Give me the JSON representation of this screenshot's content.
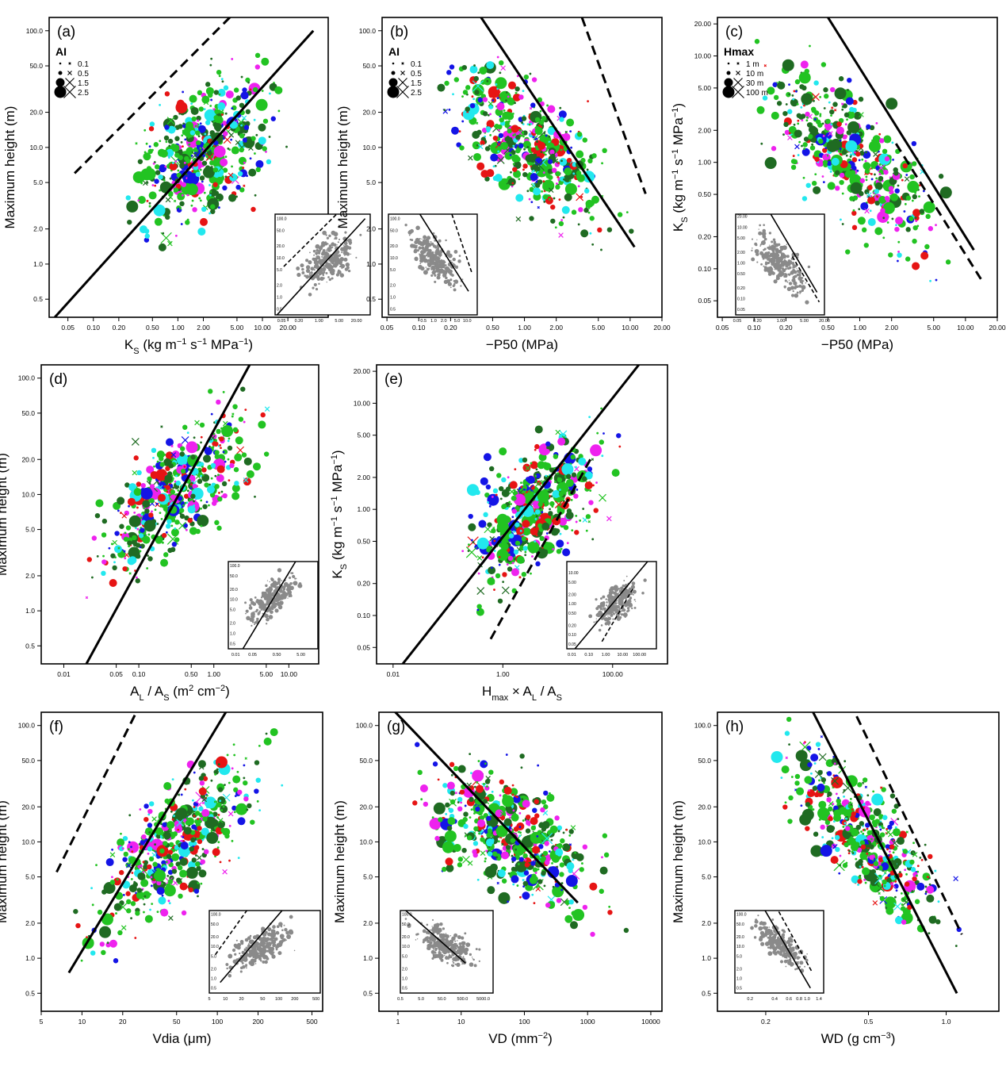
{
  "colors": {
    "dark_green": "#1f6b22",
    "green": "#22c322",
    "blue": "#1414e6",
    "cyan": "#22e8ee",
    "magenta": "#ee22ee",
    "red": "#e61414",
    "dark_red": "#8b1a1a",
    "inset_gray": "#8a8a8a"
  },
  "chart_data": [
    {
      "panel": "(a)",
      "type": "scatter",
      "xlabel": "K_S (kg m^-1 s^-1 MPa^-1)",
      "ylabel": "Maximum height (m)",
      "xscale": "log",
      "yscale": "log",
      "xlim": [
        0.03,
        60
      ],
      "ylim": [
        0.35,
        130
      ],
      "xticks": [
        "0.05",
        "0.10",
        "0.20",
        "0.50",
        "1.00",
        "2.00",
        "5.00",
        "10.00",
        "20.00"
      ],
      "yticks": [
        "0.5",
        "1.0",
        "2.0",
        "5.0",
        "10.0",
        "20.0",
        "50.0",
        "100.0"
      ],
      "legend": {
        "title": "AI",
        "entries": [
          "0.1",
          "0.5",
          "1.5",
          "2.5"
        ],
        "position": "top-left"
      },
      "point_cloud": {
        "x_range": [
          0.1,
          40
        ],
        "y_range": [
          0.6,
          130
        ]
      },
      "fit_lines": [
        {
          "style": "solid",
          "x": [
            0.035,
            40
          ],
          "y": [
            0.35,
            100
          ]
        },
        {
          "style": "dashed",
          "x": [
            0.06,
            5
          ],
          "y": [
            6,
            150
          ]
        }
      ],
      "inset": {
        "xticks": [
          "0.05",
          "0.20",
          "1.00",
          "5.00",
          "20.00"
        ],
        "yticks": [
          "0.5",
          "1.0",
          "2.0",
          "5.0",
          "10.0",
          "20.0",
          "50.0",
          "100.0"
        ]
      }
    },
    {
      "panel": "(b)",
      "type": "scatter",
      "xlabel": "−P50 (MPa)",
      "ylabel": "Maximum height (m)",
      "xscale": "log",
      "yscale": "log",
      "xlim": [
        0.045,
        20
      ],
      "ylim": [
        0.35,
        130
      ],
      "xticks": [
        "0.05",
        "0.10",
        "0.20",
        "0.50",
        "1.00",
        "2.00",
        "5.00",
        "10.00",
        "20.00"
      ],
      "yticks": [
        "0.5",
        "1.0",
        "2.0",
        "5.0",
        "10.0",
        "20.0",
        "50.0",
        "100.0"
      ],
      "legend": {
        "title": "AI",
        "entries": [
          "0.1",
          "0.5",
          "1.5",
          "2.5"
        ],
        "position": "top-left"
      },
      "point_cloud": {
        "x_range": [
          0.08,
          15
        ],
        "y_range": [
          0.8,
          130
        ]
      },
      "fit_lines": [
        {
          "style": "solid",
          "x": [
            0.35,
            11
          ],
          "y": [
            150,
            1.4
          ]
        },
        {
          "style": "dashed",
          "x": [
            3.5,
            14
          ],
          "y": [
            130,
            4
          ]
        }
      ],
      "inset": {
        "xticks": [
          "0.5",
          "1.0",
          "2.0",
          "5.0",
          "10.0"
        ],
        "yticks": [
          "0.5",
          "1.0",
          "2.0",
          "5.0",
          "10.0",
          "20.0",
          "50.0",
          "100.0"
        ]
      }
    },
    {
      "panel": "(c)",
      "type": "scatter",
      "xlabel": "−P50 (MPa)",
      "ylabel": "K_S (kg m^-1 s^-1 MPa^-1)",
      "xscale": "log",
      "yscale": "log",
      "xlim": [
        0.045,
        20
      ],
      "ylim": [
        0.035,
        23
      ],
      "xticks": [
        "0.05",
        "0.10",
        "0.20",
        "0.50",
        "1.00",
        "2.00",
        "5.00",
        "10.00",
        "20.00"
      ],
      "yticks": [
        "0.05",
        "0.10",
        "0.20",
        "0.50",
        "1.00",
        "2.00",
        "5.00",
        "10.00",
        "20.00"
      ],
      "legend": {
        "title": "Hmax",
        "entries": [
          "1 m",
          "10 m",
          "30 m",
          "100 m"
        ],
        "position": "top-left"
      },
      "point_cloud": {
        "x_range": [
          0.06,
          13
        ],
        "y_range": [
          0.06,
          18
        ]
      },
      "fit_lines": [
        {
          "style": "solid",
          "x": [
            0.5,
            12
          ],
          "y": [
            23,
            0.15
          ]
        },
        {
          "style": "dashed",
          "x": [
            2.2,
            14
          ],
          "y": [
            1.5,
            0.08
          ]
        }
      ],
      "inset": {
        "xticks": [
          "0.05",
          "0.20",
          "1.00",
          "5.00",
          "20.00"
        ],
        "yticks": [
          "0.05",
          "0.10",
          "0.20",
          "0.50",
          "1.00",
          "2.00",
          "5.00",
          "10.00",
          "20.00"
        ]
      }
    },
    {
      "panel": "(d)",
      "type": "scatter",
      "xlabel": "A_L / A_S (m^2 cm^-2)",
      "ylabel": "Maximum height (m)",
      "xscale": "log",
      "yscale": "log",
      "xlim": [
        0.005,
        25
      ],
      "ylim": [
        0.35,
        130
      ],
      "xticks": [
        "0.01",
        "0.05",
        "0.10",
        "0.50",
        "1.00",
        "5.00",
        "10.00"
      ],
      "yticks": [
        "0.5",
        "1.0",
        "2.0",
        "5.0",
        "10.0",
        "20.0",
        "50.0",
        "100.0"
      ],
      "point_cloud": {
        "x_range": [
          0.008,
          12
        ],
        "y_range": [
          1,
          120
        ]
      },
      "fit_lines": [
        {
          "style": "solid",
          "x": [
            0.02,
            3
          ],
          "y": [
            0.35,
            130
          ]
        }
      ],
      "inset": {
        "xticks": [
          "0.01",
          "0.05",
          "0.50",
          "5.00"
        ],
        "yticks": [
          "0.5",
          "1.0",
          "2.0",
          "5.0",
          "10.0",
          "20.0",
          "50.0",
          "100.0"
        ]
      }
    },
    {
      "panel": "(e)",
      "type": "scatter",
      "xlabel": "H_max × A_L / A_S",
      "ylabel": "K_S (kg m^-1 s^-1 MPa^-1)",
      "xscale": "log",
      "yscale": "log",
      "xlim": [
        0.005,
        1000
      ],
      "ylim": [
        0.035,
        23
      ],
      "xticks": [
        "0.01",
        "1.00",
        "100.00"
      ],
      "yticks": [
        "0.05",
        "0.10",
        "0.20",
        "0.50",
        "1.00",
        "2.00",
        "5.00",
        "10.00",
        "20.00"
      ],
      "point_cloud": {
        "x_range": [
          0.05,
          300
        ],
        "y_range": [
          0.07,
          15
        ]
      },
      "fit_lines": [
        {
          "style": "solid",
          "x": [
            0.015,
            300
          ],
          "y": [
            0.035,
            23
          ]
        },
        {
          "style": "dashed",
          "x": [
            0.6,
            40
          ],
          "y": [
            0.06,
            3
          ]
        }
      ],
      "inset": {
        "xticks": [
          "0.01",
          "0.10",
          "1.00",
          "10.00",
          "100.00"
        ],
        "yticks": [
          "0.05",
          "0.10",
          "0.20",
          "0.50",
          "1.00",
          "2.00",
          "5.00",
          "10.00"
        ]
      }
    },
    {
      "panel": "(f)",
      "type": "scatter",
      "xlabel": "Vdia (μm)",
      "ylabel": "Maximum height (m)",
      "xscale": "log",
      "yscale": "log",
      "xlim": [
        5,
        600
      ],
      "ylim": [
        0.35,
        130
      ],
      "xticks": [
        "5",
        "10",
        "20",
        "50",
        "100",
        "200",
        "500"
      ],
      "yticks": [
        "0.5",
        "1.0",
        "2.0",
        "5.0",
        "10.0",
        "20.0",
        "50.0",
        "100.0"
      ],
      "point_cloud": {
        "x_range": [
          6,
          400
        ],
        "y_range": [
          0.8,
          120
        ]
      },
      "fit_lines": [
        {
          "style": "solid",
          "x": [
            8,
            120
          ],
          "y": [
            0.75,
            140
          ]
        },
        {
          "style": "dashed",
          "x": [
            6.5,
            26
          ],
          "y": [
            5.5,
            140
          ]
        }
      ],
      "inset": {
        "xticks": [
          "5",
          "10",
          "20",
          "50",
          "100",
          "200",
          "500"
        ],
        "yticks": [
          "0.5",
          "1.0",
          "2.0",
          "5.0",
          "10.0",
          "20.0",
          "50.0",
          "100.0"
        ]
      }
    },
    {
      "panel": "(g)",
      "type": "scatter",
      "xlabel": "VD (mm^-2)",
      "ylabel": "Maximum height (m)",
      "xscale": "log",
      "yscale": "log",
      "xlim": [
        0.5,
        15000
      ],
      "ylim": [
        0.35,
        130
      ],
      "xticks": [
        "1",
        "10",
        "100",
        "1000",
        "10000"
      ],
      "yticks": [
        "0.5",
        "1.0",
        "2.0",
        "5.0",
        "10.0",
        "20.0",
        "50.0",
        "100.0"
      ],
      "point_cloud": {
        "x_range": [
          0.6,
          8000
        ],
        "y_range": [
          1,
          120
        ]
      },
      "fit_lines": [
        {
          "style": "solid",
          "x": [
            0.8,
            700
          ],
          "y": [
            140,
            3
          ]
        }
      ],
      "inset": {
        "xticks": [
          "0.5",
          "5.0",
          "50.0",
          "500.0",
          "5000.0"
        ],
        "yticks": [
          "0.5",
          "1.0",
          "2.0",
          "5.0",
          "10.0",
          "20.0",
          "50.0",
          "100.0"
        ]
      }
    },
    {
      "panel": "(h)",
      "type": "scatter",
      "xlabel": "WD (g cm^-3)",
      "ylabel": "Maximum height (m)",
      "xscale": "log",
      "yscale": "log",
      "xlim": [
        0.13,
        1.6
      ],
      "ylim": [
        0.35,
        130
      ],
      "xticks": [
        "0.2",
        "0.5",
        "1.0"
      ],
      "yticks": [
        "0.5",
        "1.0",
        "2.0",
        "5.0",
        "10.0",
        "20.0",
        "50.0",
        "100.0"
      ],
      "point_cloud": {
        "x_range": [
          0.18,
          1.3
        ],
        "y_range": [
          1,
          120
        ]
      },
      "fit_lines": [
        {
          "style": "solid",
          "x": [
            0.3,
            1.1
          ],
          "y": [
            140,
            0.5
          ]
        },
        {
          "style": "dashed",
          "x": [
            0.45,
            1.15
          ],
          "y": [
            120,
            1.6
          ]
        }
      ],
      "inset": {
        "xticks": [
          "0.2",
          "0.4",
          "0.6",
          "0.8",
          "1.0",
          "1.4"
        ],
        "yticks": [
          "0.5",
          "1.0",
          "2.0",
          "5.0",
          "10.0",
          "20.0",
          "50.0",
          "100.0"
        ]
      }
    }
  ]
}
